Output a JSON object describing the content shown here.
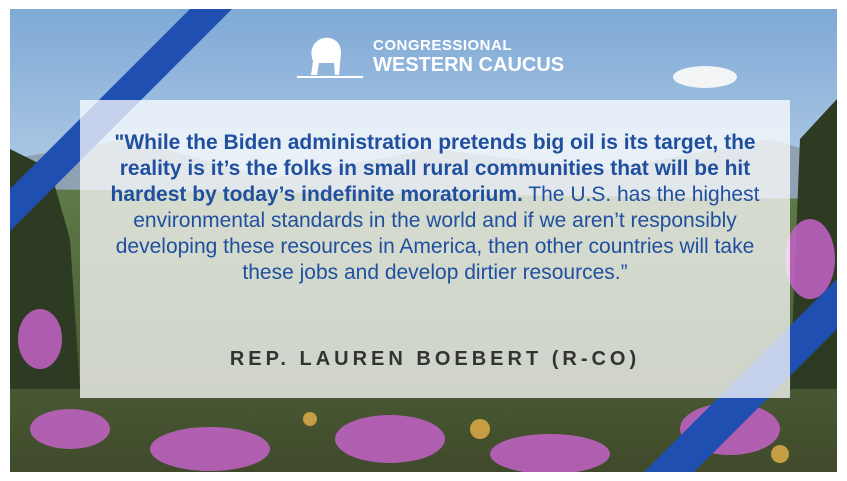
{
  "logo": {
    "line1": "CONGRESSIONAL",
    "line2": "WESTERN CAUCUS"
  },
  "quote": {
    "emphasis": "\"While the Biden administration pretends big oil is its target, the reality is it’s the folks in small rural communities that will be hit hardest by today’s indefinite moratorium.",
    "text": " The U.S. has the highest environmental standards in the world and if we aren’t responsibly developing these resources in America, then other countries will take these jobs and develop dirtier resources.”"
  },
  "attribution": "REP. LAUREN BOEBERT (R-CO)"
}
